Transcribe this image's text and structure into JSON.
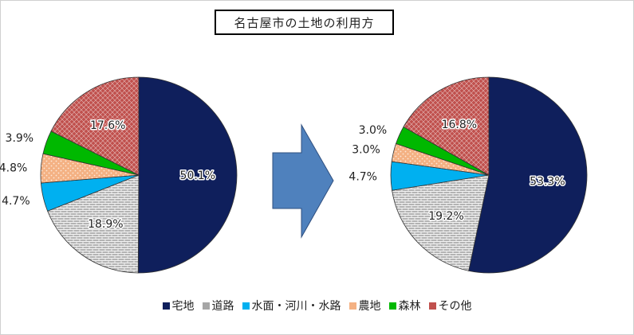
{
  "title": "名古屋市の土地の利用方",
  "colors": {
    "宅地": "#0f1f5c",
    "道路": "#a6a6a6",
    "水面・河川・水路": "#00b0f0",
    "農地": "#f4b183",
    "森林": "#00b800",
    "その他": "#c0504d"
  },
  "chart_data": [
    {
      "type": "pie",
      "categories": [
        "宅地",
        "道路",
        "水面・河川・水路",
        "農地",
        "森林",
        "その他"
      ],
      "values": [
        50.1,
        18.9,
        4.7,
        4.8,
        3.9,
        17.6
      ],
      "labels": [
        "50.1%",
        "18.9%",
        "4.7%",
        "4.8%",
        "3.9%",
        "17.6%"
      ]
    },
    {
      "type": "pie",
      "categories": [
        "宅地",
        "道路",
        "水面・河川・水路",
        "農地",
        "森林",
        "その他"
      ],
      "values": [
        53.3,
        19.2,
        4.7,
        3.0,
        3.0,
        16.8
      ],
      "labels": [
        "53.3%",
        "19.2%",
        "4.7%",
        "3.0%",
        "3.0%",
        "16.8%"
      ]
    }
  ],
  "legend": [
    "宅地",
    "道路",
    "水面・河川・水路",
    "農地",
    "森林",
    "その他"
  ]
}
